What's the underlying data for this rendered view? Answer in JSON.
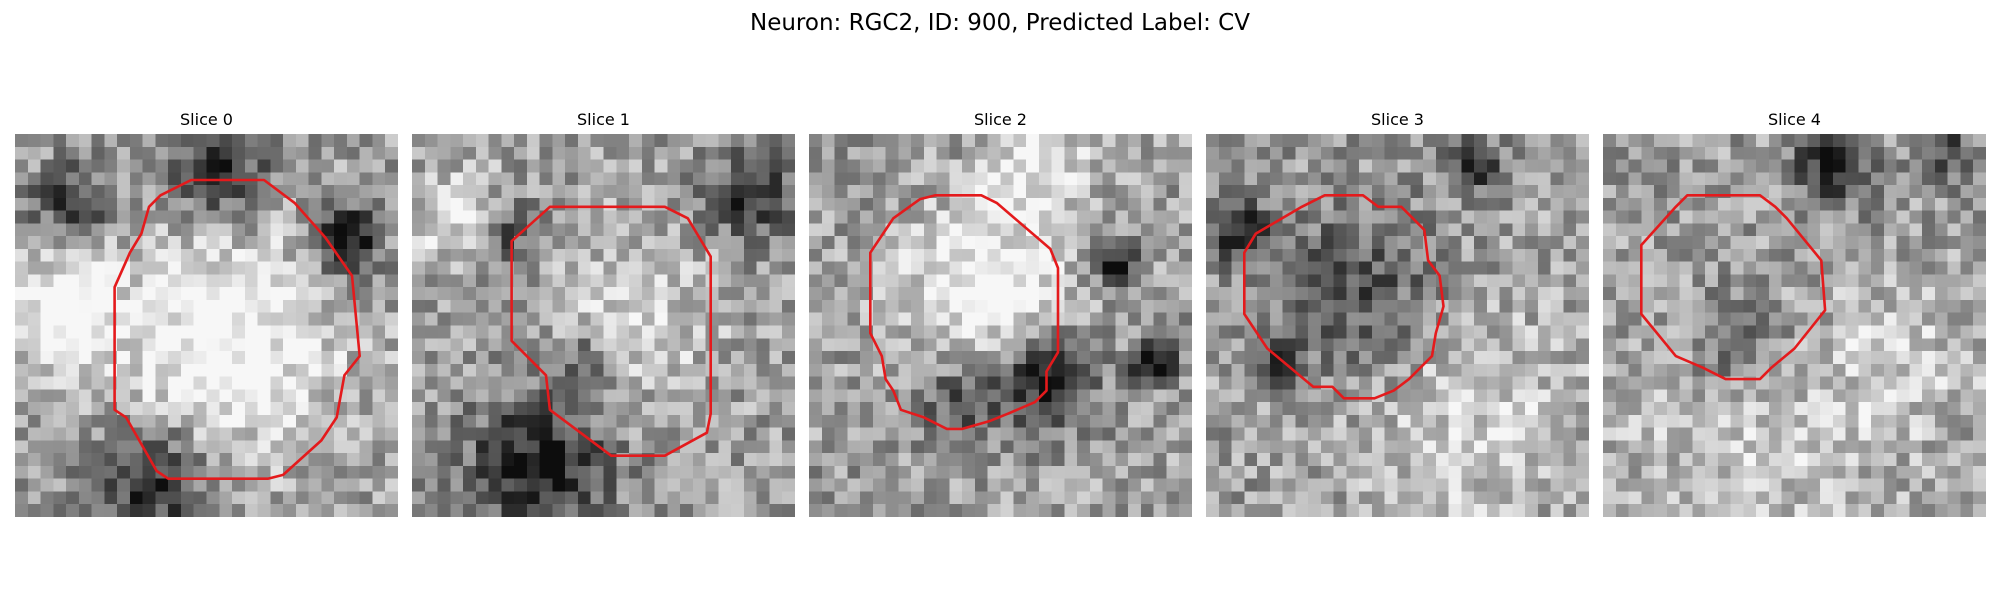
{
  "figure": {
    "title": "Neuron: RGC2, ID: 900, Predicted Label: CV"
  },
  "panels": [
    {
      "title": "Slice 0",
      "contour_color": "#e41a1c",
      "contour": [
        [
          0.38,
          0.16
        ],
        [
          0.46,
          0.12
        ],
        [
          0.65,
          0.12
        ],
        [
          0.73,
          0.18
        ],
        [
          0.81,
          0.27
        ],
        [
          0.88,
          0.37
        ],
        [
          0.9,
          0.58
        ],
        [
          0.86,
          0.63
        ],
        [
          0.84,
          0.74
        ],
        [
          0.8,
          0.8
        ],
        [
          0.7,
          0.89
        ],
        [
          0.66,
          0.9
        ],
        [
          0.4,
          0.9
        ],
        [
          0.37,
          0.88
        ],
        [
          0.29,
          0.74
        ],
        [
          0.26,
          0.72
        ],
        [
          0.26,
          0.4
        ],
        [
          0.3,
          0.31
        ],
        [
          0.33,
          0.26
        ],
        [
          0.35,
          0.19
        ]
      ],
      "texture": {
        "seed": 11,
        "bright": [
          [
            0.53,
            0.55,
            0.31,
            0.42
          ],
          [
            0.12,
            0.45,
            0.12,
            0.45
          ]
        ],
        "dark": [
          [
            0.53,
            0.1,
            0.14,
            0.45
          ],
          [
            0.86,
            0.28,
            0.09,
            0.65
          ],
          [
            0.35,
            0.9,
            0.17,
            0.48
          ],
          [
            0.15,
            0.18,
            0.1,
            0.4
          ]
        ]
      }
    },
    {
      "title": "Slice 1",
      "contour_color": "#e41a1c",
      "contour": [
        [
          0.37,
          0.19
        ],
        [
          0.66,
          0.19
        ],
        [
          0.72,
          0.22
        ],
        [
          0.78,
          0.32
        ],
        [
          0.78,
          0.73
        ],
        [
          0.77,
          0.78
        ],
        [
          0.66,
          0.84
        ],
        [
          0.52,
          0.84
        ],
        [
          0.36,
          0.72
        ],
        [
          0.35,
          0.63
        ],
        [
          0.26,
          0.54
        ],
        [
          0.26,
          0.28
        ],
        [
          0.36,
          0.19
        ]
      ],
      "texture": {
        "seed": 23,
        "bright": [
          [
            0.58,
            0.47,
            0.22,
            0.22
          ],
          [
            0.12,
            0.22,
            0.12,
            0.3
          ]
        ],
        "dark": [
          [
            0.33,
            0.87,
            0.18,
            0.55
          ],
          [
            0.24,
            0.26,
            0.09,
            0.35
          ],
          [
            0.88,
            0.16,
            0.12,
            0.4
          ],
          [
            0.45,
            0.6,
            0.08,
            0.3
          ]
        ]
      }
    },
    {
      "title": "Slice 2",
      "contour_color": "#e41a1c",
      "contour": [
        [
          0.33,
          0.16
        ],
        [
          0.45,
          0.16
        ],
        [
          0.49,
          0.18
        ],
        [
          0.63,
          0.3
        ],
        [
          0.65,
          0.35
        ],
        [
          0.65,
          0.57
        ],
        [
          0.62,
          0.62
        ],
        [
          0.62,
          0.67
        ],
        [
          0.59,
          0.7
        ],
        [
          0.52,
          0.73
        ],
        [
          0.47,
          0.75
        ],
        [
          0.4,
          0.77
        ],
        [
          0.36,
          0.77
        ],
        [
          0.3,
          0.74
        ],
        [
          0.24,
          0.72
        ],
        [
          0.22,
          0.67
        ],
        [
          0.2,
          0.64
        ],
        [
          0.19,
          0.58
        ],
        [
          0.16,
          0.52
        ],
        [
          0.16,
          0.31
        ],
        [
          0.22,
          0.22
        ],
        [
          0.29,
          0.17
        ]
      ],
      "texture": {
        "seed": 37,
        "bright": [
          [
            0.45,
            0.4,
            0.2,
            0.4
          ],
          [
            0.6,
            0.1,
            0.14,
            0.3
          ]
        ],
        "dark": [
          [
            0.62,
            0.65,
            0.12,
            0.55
          ],
          [
            0.9,
            0.6,
            0.05,
            0.75
          ],
          [
            0.8,
            0.34,
            0.05,
            0.65
          ],
          [
            0.4,
            0.7,
            0.1,
            0.35
          ]
        ]
      }
    },
    {
      "title": "Slice 3",
      "contour_color": "#e41a1c",
      "contour": [
        [
          0.25,
          0.19
        ],
        [
          0.31,
          0.16
        ],
        [
          0.41,
          0.16
        ],
        [
          0.45,
          0.19
        ],
        [
          0.51,
          0.19
        ],
        [
          0.57,
          0.25
        ],
        [
          0.58,
          0.33
        ],
        [
          0.61,
          0.37
        ],
        [
          0.62,
          0.45
        ],
        [
          0.6,
          0.52
        ],
        [
          0.59,
          0.58
        ],
        [
          0.53,
          0.64
        ],
        [
          0.49,
          0.67
        ],
        [
          0.44,
          0.69
        ],
        [
          0.36,
          0.69
        ],
        [
          0.33,
          0.66
        ],
        [
          0.28,
          0.66
        ],
        [
          0.22,
          0.61
        ],
        [
          0.16,
          0.56
        ],
        [
          0.1,
          0.47
        ],
        [
          0.1,
          0.31
        ],
        [
          0.13,
          0.26
        ]
      ],
      "texture": {
        "seed": 53,
        "bright": [
          [
            0.7,
            0.75,
            0.3,
            0.2
          ]
        ],
        "dark": [
          [
            0.4,
            0.4,
            0.22,
            0.3
          ],
          [
            0.08,
            0.25,
            0.08,
            0.45
          ],
          [
            0.7,
            0.08,
            0.07,
            0.45
          ],
          [
            0.2,
            0.6,
            0.06,
            0.4
          ]
        ]
      }
    },
    {
      "title": "Slice 4",
      "contour_color": "#e41a1c",
      "contour": [
        [
          0.22,
          0.16
        ],
        [
          0.41,
          0.16
        ],
        [
          0.45,
          0.19
        ],
        [
          0.48,
          0.22
        ],
        [
          0.57,
          0.33
        ],
        [
          0.58,
          0.46
        ],
        [
          0.5,
          0.56
        ],
        [
          0.44,
          0.61
        ],
        [
          0.41,
          0.64
        ],
        [
          0.32,
          0.64
        ],
        [
          0.26,
          0.61
        ],
        [
          0.19,
          0.58
        ],
        [
          0.1,
          0.47
        ],
        [
          0.1,
          0.29
        ],
        [
          0.19,
          0.19
        ]
      ],
      "texture": {
        "seed": 71,
        "bright": [
          [
            0.4,
            0.8,
            0.35,
            0.18
          ],
          [
            0.8,
            0.6,
            0.2,
            0.15
          ]
        ],
        "dark": [
          [
            0.6,
            0.08,
            0.1,
            0.55
          ],
          [
            0.35,
            0.55,
            0.15,
            0.25
          ],
          [
            0.9,
            0.05,
            0.08,
            0.35
          ]
        ]
      }
    }
  ]
}
